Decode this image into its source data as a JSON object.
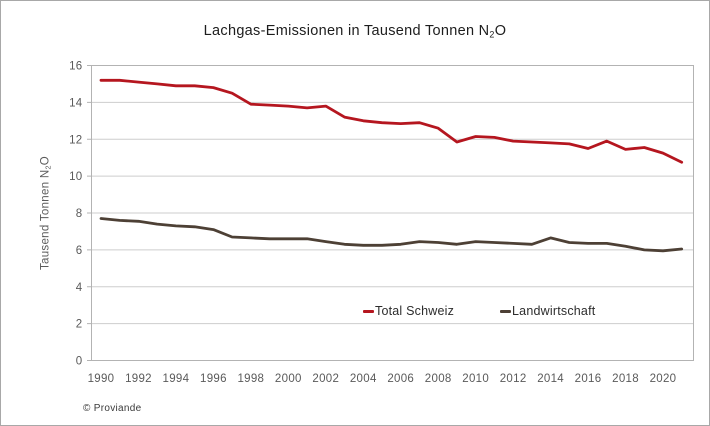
{
  "frame": {
    "background": "#ffffff",
    "border_color": "#a8a8a8"
  },
  "chart": {
    "title_prefix": "Lachgas-Emissionen in Tausend Tonnen N",
    "title_sub": "2",
    "title_suffix": "O",
    "y_axis_prefix": "Tausend Tonnen N",
    "y_axis_sub": "2",
    "y_axis_suffix": "O"
  },
  "footer": {
    "copyright": "© Proviande"
  },
  "colors": {
    "gridline": "#cdcdcd",
    "plot_border": "#b3b3b3",
    "tick_text": "#5a5a5a",
    "title_text": "#1d1d1d"
  },
  "chart_data": {
    "type": "line",
    "title": "Lachgas-Emissionen in Tausend Tonnen N₂O",
    "xlabel": "",
    "ylabel": "Tausend Tonnen N₂O",
    "ylim": [
      0,
      16
    ],
    "y_ticks": [
      0,
      2,
      4,
      6,
      8,
      10,
      12,
      14,
      16
    ],
    "x_tick_years": [
      1990,
      1992,
      1994,
      1996,
      1998,
      2000,
      2002,
      2004,
      2006,
      2008,
      2010,
      2012,
      2014,
      2016,
      2018,
      2020
    ],
    "grid": "horizontal",
    "legend_position": "inside-bottom-center",
    "x": [
      1990,
      1991,
      1992,
      1993,
      1994,
      1995,
      1996,
      1997,
      1998,
      1999,
      2000,
      2001,
      2002,
      2003,
      2004,
      2005,
      2006,
      2007,
      2008,
      2009,
      2010,
      2011,
      2012,
      2013,
      2014,
      2015,
      2016,
      2017,
      2018,
      2019,
      2020,
      2021
    ],
    "series": [
      {
        "name": "Total Schweiz",
        "color": "#b5161f",
        "values": [
          15.2,
          15.2,
          15.1,
          15.0,
          14.9,
          14.9,
          14.8,
          14.5,
          13.9,
          13.85,
          13.8,
          13.7,
          13.8,
          13.2,
          13.0,
          12.9,
          12.85,
          12.9,
          12.6,
          11.85,
          12.15,
          12.1,
          11.9,
          11.85,
          11.8,
          11.75,
          11.5,
          11.9,
          11.45,
          11.55,
          11.25,
          10.75
        ]
      },
      {
        "name": "Landwirtschaft",
        "color": "#4d4035",
        "values": [
          7.7,
          7.6,
          7.55,
          7.4,
          7.3,
          7.25,
          7.1,
          6.7,
          6.65,
          6.6,
          6.6,
          6.6,
          6.45,
          6.3,
          6.25,
          6.25,
          6.3,
          6.45,
          6.4,
          6.3,
          6.45,
          6.4,
          6.35,
          6.3,
          6.65,
          6.4,
          6.35,
          6.35,
          6.2,
          6.0,
          5.95,
          6.05
        ]
      }
    ]
  }
}
